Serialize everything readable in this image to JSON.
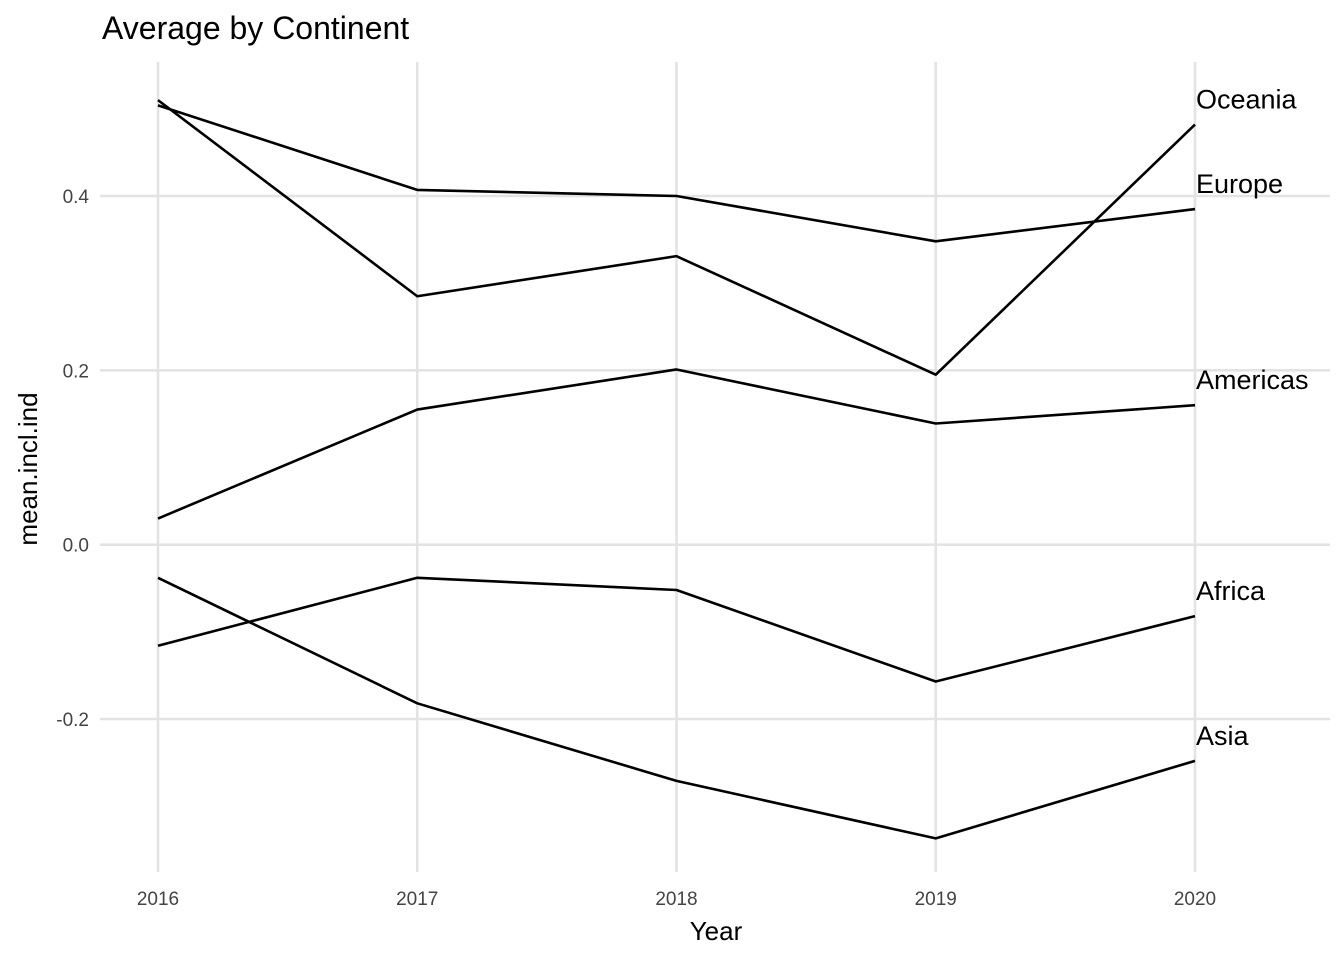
{
  "chart_data": {
    "type": "line",
    "title": "Average by Continent",
    "xlabel": "Year",
    "ylabel": "mean.incl.ind",
    "x": [
      2016,
      2017,
      2018,
      2019,
      2020
    ],
    "x_tick_labels": [
      "2016",
      "2017",
      "2018",
      "2019",
      "2020"
    ],
    "y_ticks": [
      -0.2,
      0.0,
      0.2,
      0.4
    ],
    "y_tick_labels": [
      "-0.2",
      "0.0",
      "0.2",
      "0.4"
    ],
    "xlim": [
      2016,
      2020
    ],
    "ylim": [
      -0.37,
      0.55
    ],
    "grid": true,
    "legend": "none",
    "series_labels_position": "line-end",
    "line_color": "#000000",
    "grid_color": "#e3e3e3",
    "series": [
      {
        "name": "Oceania",
        "values": [
          0.51,
          0.285,
          0.331,
          0.195,
          0.482
        ]
      },
      {
        "name": "Europe",
        "values": [
          0.504,
          0.407,
          0.4,
          0.348,
          0.385
        ]
      },
      {
        "name": "Americas",
        "values": [
          0.03,
          0.155,
          0.201,
          0.139,
          0.16
        ]
      },
      {
        "name": "Africa",
        "values": [
          -0.116,
          -0.038,
          -0.052,
          -0.157,
          -0.082
        ]
      },
      {
        "name": "Asia",
        "values": [
          -0.038,
          -0.182,
          -0.271,
          -0.337,
          -0.248
        ]
      }
    ]
  }
}
